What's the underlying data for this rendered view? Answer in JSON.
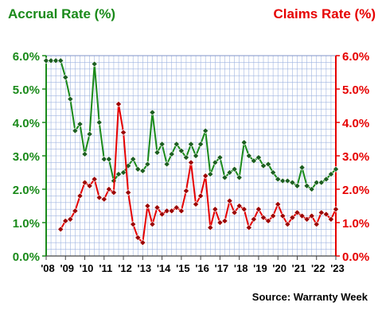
{
  "chart_data": {
    "type": "line",
    "left_axis_title": "Accrual Rate (%)",
    "right_axis_title": "Claims Rate (%)",
    "source": "Source: Warranty Week",
    "xlim": [
      2008,
      2023
    ],
    "ylim": [
      0,
      6
    ],
    "grid": true,
    "x_tick_labels": [
      "'08",
      "'09",
      "'10",
      "'11",
      "'12",
      "'13",
      "'14",
      "'15",
      "'16",
      "'17",
      "'18",
      "'19",
      "'20",
      "'21",
      "'22",
      "'23"
    ],
    "left_tick_labels": [
      "0.0%",
      "1.0%",
      "2.0%",
      "3.0%",
      "4.0%",
      "5.0%",
      "6.0%"
    ],
    "right_tick_labels": [
      "0.0%",
      "1.0%",
      "2.0%",
      "3.0%",
      "4.0%",
      "5.0%",
      "6.0%"
    ],
    "colors": {
      "accrual": "#1a8a1a",
      "claims": "#e60000",
      "grid": "#9fb4e0",
      "accrual_marker": "#1b5e20",
      "claims_marker": "#9b0000"
    },
    "series": [
      {
        "key": "accrual",
        "x": [
          2008.0,
          2008.25,
          2008.5,
          2008.75,
          2009.0,
          2009.25,
          2009.5,
          2009.75,
          2010.0,
          2010.25,
          2010.5,
          2010.75,
          2011.0,
          2011.25,
          2011.5,
          2011.75,
          2012.0,
          2012.25,
          2012.5,
          2012.75,
          2013.0,
          2013.25,
          2013.5,
          2013.75,
          2014.0,
          2014.25,
          2014.5,
          2014.75,
          2015.0,
          2015.25,
          2015.5,
          2015.75,
          2016.0,
          2016.25,
          2016.5,
          2016.75,
          2017.0,
          2017.25,
          2017.5,
          2017.75,
          2018.0,
          2018.25,
          2018.5,
          2018.75,
          2019.0,
          2019.25,
          2019.5,
          2019.75,
          2020.0,
          2020.25,
          2020.5,
          2020.75,
          2021.0,
          2021.25,
          2021.5,
          2021.75,
          2022.0,
          2022.25,
          2022.5,
          2022.75,
          2023.0
        ],
        "values": [
          5.85,
          5.85,
          5.85,
          5.85,
          5.35,
          4.7,
          3.75,
          3.95,
          3.05,
          3.65,
          5.75,
          4.0,
          2.9,
          2.9,
          2.25,
          2.45,
          2.5,
          2.7,
          2.9,
          2.6,
          2.55,
          2.75,
          4.3,
          3.1,
          3.35,
          2.75,
          3.05,
          3.35,
          3.15,
          2.95,
          3.35,
          3.0,
          3.35,
          3.75,
          2.45,
          2.8,
          2.95,
          2.35,
          2.5,
          2.6,
          2.35,
          3.4,
          3.0,
          2.85,
          2.95,
          2.7,
          2.75,
          2.5,
          2.3,
          2.25,
          2.25,
          2.2,
          2.1,
          2.65,
          2.1,
          2.0,
          2.2,
          2.2,
          2.3,
          2.45,
          2.6
        ]
      },
      {
        "key": "claims",
        "x": [
          2008.75,
          2009.0,
          2009.25,
          2009.5,
          2009.75,
          2010.0,
          2010.25,
          2010.5,
          2010.75,
          2011.0,
          2011.25,
          2011.5,
          2011.75,
          2012.0,
          2012.25,
          2012.5,
          2012.75,
          2013.0,
          2013.25,
          2013.5,
          2013.75,
          2014.0,
          2014.25,
          2014.5,
          2014.75,
          2015.0,
          2015.25,
          2015.5,
          2015.75,
          2016.0,
          2016.25,
          2016.5,
          2016.75,
          2017.0,
          2017.25,
          2017.5,
          2017.75,
          2018.0,
          2018.25,
          2018.5,
          2018.75,
          2019.0,
          2019.25,
          2019.5,
          2019.75,
          2020.0,
          2020.25,
          2020.5,
          2020.75,
          2021.0,
          2021.25,
          2021.5,
          2021.75,
          2022.0,
          2022.25,
          2022.5,
          2022.75,
          2023.0
        ],
        "values": [
          0.8,
          1.05,
          1.1,
          1.35,
          1.8,
          2.2,
          2.1,
          2.3,
          1.75,
          1.7,
          2.0,
          1.9,
          4.55,
          3.7,
          1.9,
          0.95,
          0.55,
          0.4,
          1.5,
          0.95,
          1.45,
          1.25,
          1.35,
          1.35,
          1.45,
          1.35,
          1.95,
          2.8,
          1.55,
          1.8,
          2.4,
          0.85,
          1.4,
          1.0,
          1.05,
          1.65,
          1.3,
          1.5,
          1.4,
          0.85,
          1.1,
          1.4,
          1.15,
          1.05,
          1.2,
          1.55,
          1.2,
          0.95,
          1.15,
          1.3,
          1.2,
          1.1,
          1.2,
          0.95,
          1.3,
          1.25,
          1.1,
          1.4
        ]
      }
    ]
  }
}
